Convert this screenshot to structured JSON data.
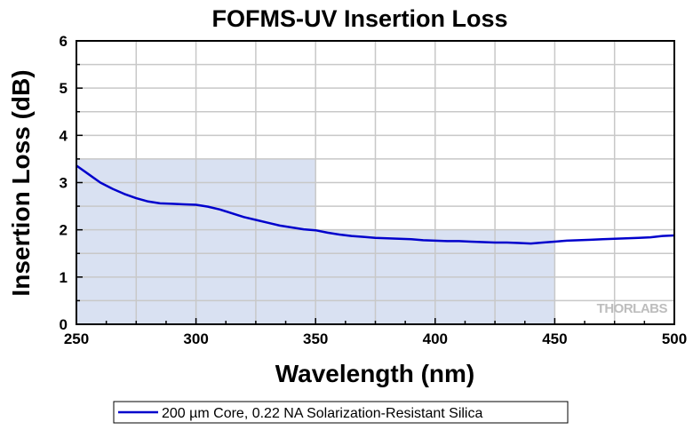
{
  "chart_data": {
    "type": "line",
    "title": "FOFMS-UV Insertion Loss",
    "xlabel": "Wavelength (nm)",
    "ylabel": "Insertion Loss (dB)",
    "xlim": [
      250,
      500
    ],
    "ylim": [
      0,
      6
    ],
    "x_ticks": [
      "250",
      "300",
      "350",
      "400",
      "450",
      "500"
    ],
    "y_ticks": [
      "0",
      "1",
      "2",
      "3",
      "4",
      "5",
      "6"
    ],
    "grid": true,
    "legend_position": "bottom",
    "series": [
      {
        "name": "200 µm Core, 0.22 NA Solarization-Resistant Silica",
        "color": "#0000cc",
        "x": [
          250,
          255,
          260,
          265,
          270,
          275,
          280,
          285,
          290,
          295,
          300,
          305,
          310,
          315,
          320,
          325,
          330,
          335,
          340,
          345,
          350,
          355,
          360,
          365,
          370,
          375,
          380,
          385,
          390,
          395,
          400,
          405,
          410,
          415,
          420,
          425,
          430,
          435,
          440,
          445,
          450,
          455,
          460,
          465,
          470,
          475,
          480,
          485,
          490,
          495,
          500
        ],
        "y": [
          3.36,
          3.18,
          3.0,
          2.87,
          2.76,
          2.67,
          2.6,
          2.56,
          2.55,
          2.54,
          2.53,
          2.49,
          2.43,
          2.35,
          2.27,
          2.21,
          2.15,
          2.09,
          2.05,
          2.01,
          1.99,
          1.94,
          1.9,
          1.87,
          1.85,
          1.83,
          1.82,
          1.81,
          1.8,
          1.78,
          1.77,
          1.76,
          1.76,
          1.75,
          1.74,
          1.73,
          1.73,
          1.72,
          1.71,
          1.73,
          1.75,
          1.77,
          1.78,
          1.79,
          1.8,
          1.81,
          1.82,
          1.83,
          1.84,
          1.87,
          1.88
        ]
      }
    ],
    "shaded_regions": [
      {
        "x": [
          250,
          350
        ],
        "y": [
          0,
          3.5
        ],
        "color": "#d9e1f2"
      },
      {
        "x": [
          350,
          450
        ],
        "y": [
          0,
          2.0
        ],
        "color": "#d9e1f2"
      }
    ]
  },
  "watermark": "THORLABS",
  "colors": {
    "background": "#ffffff",
    "grid": "#c8c8c8",
    "axis": "#000000",
    "line": "#0000cc",
    "shade": "#d9e1f2"
  }
}
